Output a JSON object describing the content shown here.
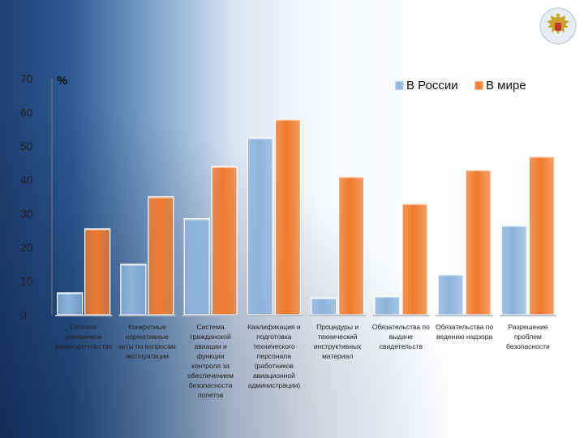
{
  "chart_data": {
    "type": "bar",
    "unit_label": "%",
    "ylim": [
      0,
      70
    ],
    "yticks": [
      0,
      10,
      20,
      30,
      40,
      50,
      60,
      70
    ],
    "legend_position": "top-right",
    "grid": false,
    "categories": [
      [
        "Отсевое",
        "доказанное",
        "законодательство"
      ],
      [
        "Конкретные",
        "нормативные",
        "акты по вопросам",
        "эксплуатации"
      ],
      [
        "Система",
        "гражданской",
        "авиации и",
        "функции",
        "контроля за",
        "обеспечением",
        "безопасности",
        "полетов"
      ],
      [
        "Квалификация и",
        "подготовка",
        "технического",
        "персонала",
        "(работников",
        "авиационной",
        "администрации)"
      ],
      [
        "Процедуры и",
        "технический",
        "инструктивных",
        "материал"
      ],
      [
        "Обязательства по",
        "выдаче",
        "свидетельств"
      ],
      [
        "Обязательства по",
        "ведению надзора"
      ],
      [
        "Разрешение",
        "проблем",
        "безопасности"
      ]
    ],
    "series": [
      {
        "name": "В России",
        "color": "#8cb3dc",
        "values": [
          6.5,
          15,
          28.5,
          52.5,
          5,
          5.5,
          12,
          26.5
        ]
      },
      {
        "name": "В мире",
        "color": "#f07a2c",
        "values": [
          25.5,
          35,
          44,
          58,
          41,
          33,
          43,
          47
        ]
      }
    ]
  },
  "header": {
    "emblem_icon": "double-headed-eagle-emblem-icon"
  }
}
